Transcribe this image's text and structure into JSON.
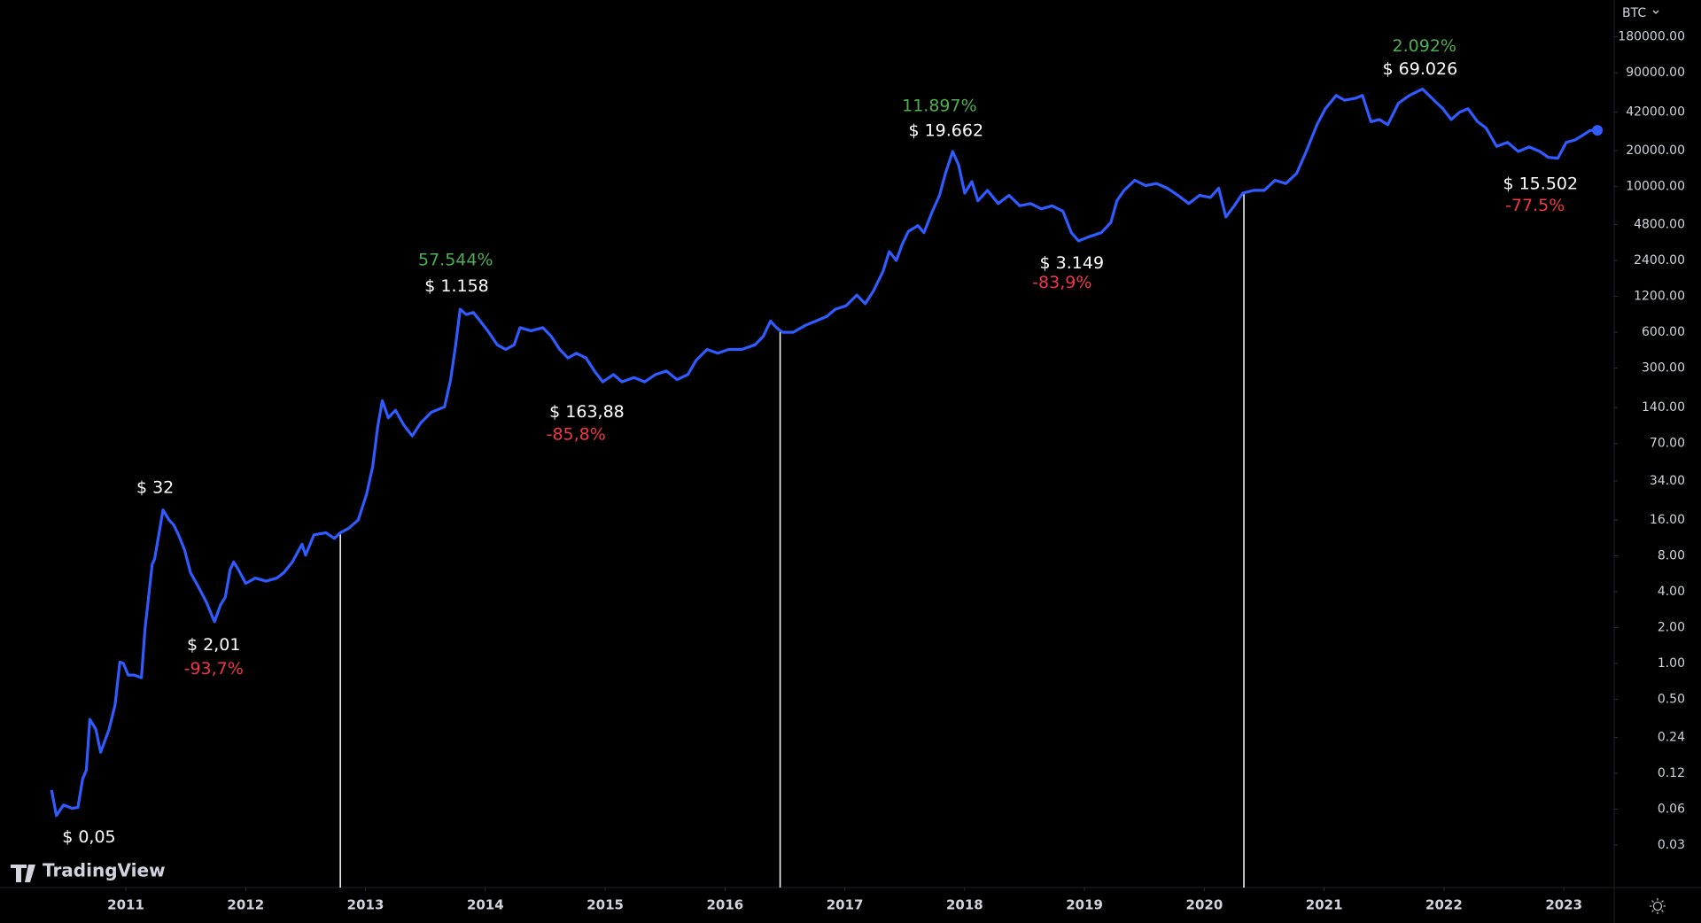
{
  "chart_data": {
    "type": "line",
    "log_scale": true,
    "grid": false,
    "xlim": [
      2009.95,
      2023.42
    ],
    "xticks": [
      2011,
      2012,
      2013,
      2014,
      2015,
      2016,
      2017,
      2018,
      2019,
      2020,
      2021,
      2022,
      2023
    ],
    "ylim": [
      0.0132,
      367000
    ],
    "yticks": [
      {
        "value": 180000,
        "label": "180000.00"
      },
      {
        "value": 90000,
        "label": "90000.00"
      },
      {
        "value": 42000,
        "label": "42000.00"
      },
      {
        "value": 20000,
        "label": "20000.00"
      },
      {
        "value": 10000,
        "label": "10000.00"
      },
      {
        "value": 4800,
        "label": "4800.00"
      },
      {
        "value": 2400,
        "label": "2400.00"
      },
      {
        "value": 1200,
        "label": "1200.00"
      },
      {
        "value": 600,
        "label": "600.00"
      },
      {
        "value": 300,
        "label": "300.00"
      },
      {
        "value": 140,
        "label": "140.00"
      },
      {
        "value": 70,
        "label": "70.00"
      },
      {
        "value": 34,
        "label": "34.00"
      },
      {
        "value": 16,
        "label": "16.00"
      },
      {
        "value": 8,
        "label": "8.00"
      },
      {
        "value": 4,
        "label": "4.00"
      },
      {
        "value": 2,
        "label": "2.00"
      },
      {
        "value": 1,
        "label": "1.00"
      },
      {
        "value": 0.5,
        "label": "0.50"
      },
      {
        "value": 0.24,
        "label": "0.24"
      },
      {
        "value": 0.12,
        "label": "0.12"
      },
      {
        "value": 0.06,
        "label": "0.06"
      },
      {
        "value": 0.03,
        "label": "0.03"
      }
    ],
    "x": [
      2010.38,
      2010.42,
      2010.48,
      2010.55,
      2010.6,
      2010.64,
      2010.67,
      2010.7,
      2010.75,
      2010.79,
      2010.86,
      2010.91,
      2010.95,
      2010.98,
      2011.02,
      2011.07,
      2011.13,
      2011.16,
      2011.22,
      2011.24,
      2011.31,
      2011.36,
      2011.4,
      2011.44,
      2011.49,
      2011.54,
      2011.6,
      2011.67,
      2011.74,
      2011.79,
      2011.83,
      2011.87,
      2011.9,
      2011.94,
      2012.0,
      2012.08,
      2012.17,
      2012.26,
      2012.32,
      2012.39,
      2012.47,
      2012.5,
      2012.57,
      2012.67,
      2012.74,
      2012.79,
      2012.86,
      2012.94,
      2013.01,
      2013.06,
      2013.1,
      2013.14,
      2013.19,
      2013.25,
      2013.32,
      2013.39,
      2013.46,
      2013.55,
      2013.66,
      2013.71,
      2013.75,
      2013.79,
      2013.84,
      2013.9,
      2013.95,
      2014.02,
      2014.1,
      2014.17,
      2014.24,
      2014.29,
      2014.38,
      2014.48,
      2014.55,
      2014.62,
      2014.69,
      2014.76,
      2014.84,
      2014.91,
      2014.98,
      2015.07,
      2015.14,
      2015.24,
      2015.33,
      2015.42,
      2015.51,
      2015.6,
      2015.69,
      2015.76,
      2015.85,
      2015.94,
      2016.03,
      2016.14,
      2016.25,
      2016.32,
      2016.38,
      2016.43,
      2016.48,
      2016.57,
      2016.67,
      2016.76,
      2016.85,
      2016.92,
      2017.01,
      2017.1,
      2017.17,
      2017.24,
      2017.32,
      2017.37,
      2017.43,
      2017.48,
      2017.53,
      2017.61,
      2017.66,
      2017.73,
      2017.79,
      2017.84,
      2017.9,
      2017.95,
      2018.0,
      2018.06,
      2018.11,
      2018.19,
      2018.28,
      2018.37,
      2018.46,
      2018.55,
      2018.64,
      2018.73,
      2018.82,
      2018.89,
      2018.95,
      2019.04,
      2019.14,
      2019.22,
      2019.27,
      2019.33,
      2019.42,
      2019.51,
      2019.6,
      2019.69,
      2019.78,
      2019.87,
      2019.96,
      2020.05,
      2020.12,
      2020.18,
      2020.25,
      2020.32,
      2020.41,
      2020.5,
      2020.59,
      2020.68,
      2020.77,
      2020.85,
      2020.94,
      2021.01,
      2021.1,
      2021.17,
      2021.26,
      2021.32,
      2021.39,
      2021.46,
      2021.53,
      2021.62,
      2021.71,
      2021.82,
      2021.9,
      2021.99,
      2022.06,
      2022.13,
      2022.2,
      2022.28,
      2022.35,
      2022.44,
      2022.53,
      2022.62,
      2022.71,
      2022.8,
      2022.87,
      2022.95,
      2023.02,
      2023.09,
      2023.16,
      2023.22,
      2023.28
    ],
    "series": [
      {
        "name": "BTC",
        "color": "#2f5bff",
        "values": [
          0.087,
          0.053,
          0.065,
          0.061,
          0.062,
          0.108,
          0.127,
          0.34,
          0.28,
          0.18,
          0.28,
          0.45,
          1.03,
          1.0,
          0.8,
          0.8,
          0.76,
          1.95,
          6.8,
          7.5,
          19.4,
          16,
          14.5,
          12,
          9.0,
          5.76,
          4.5,
          3.3,
          2.24,
          3.1,
          3.6,
          6.1,
          7.1,
          6.1,
          4.7,
          5.2,
          4.9,
          5.2,
          5.8,
          7.1,
          10.0,
          8.1,
          12,
          12.5,
          11.2,
          12.5,
          13.6,
          16,
          26.5,
          45,
          94,
          160,
          115,
          133,
          100,
          81,
          104,
          128,
          142,
          240,
          450,
          935,
          844,
          880,
          760,
          617,
          470,
          430,
          470,
          655,
          617,
          655,
          555,
          430,
          365,
          400,
          365,
          284,
          230,
          265,
          230,
          250,
          230,
          265,
          284,
          240,
          265,
          350,
          430,
          400,
          430,
          430,
          470,
          555,
          745,
          655,
          600,
          600,
          685,
          745,
          815,
          935,
          1000,
          1230,
          1040,
          1340,
          1960,
          2850,
          2400,
          3300,
          4200,
          4700,
          4100,
          6200,
          8450,
          12900,
          19700,
          15100,
          8800,
          11000,
          7600,
          9300,
          7200,
          8450,
          6900,
          7200,
          6500,
          6900,
          6200,
          4100,
          3500,
          3800,
          4100,
          5000,
          7600,
          9300,
          11300,
          10200,
          10600,
          9700,
          8450,
          7200,
          8450,
          8100,
          9700,
          5550,
          6900,
          8800,
          9300,
          9300,
          11300,
          10600,
          12900,
          19700,
          33000,
          45000,
          58000,
          53000,
          55000,
          58000,
          35000,
          36500,
          33000,
          50000,
          58000,
          65800,
          55000,
          45000,
          36500,
          42000,
          45000,
          35000,
          31000,
          21700,
          23500,
          19700,
          21500,
          19700,
          17600,
          17300,
          23500,
          24500,
          27000,
          29600,
          29600
        ]
      }
    ],
    "vlines": [
      2012.79,
      2016.46,
      2020.33
    ],
    "vline_color": "#ffffff",
    "annotations": [
      {
        "text": "$ 0,05",
        "color": "#ffffff"
      },
      {
        "text": "$ 32",
        "color": "#ffffff"
      },
      {
        "text": "$ 2,01",
        "color": "#ffffff"
      },
      {
        "text": "-93,7%",
        "color": "#f23645"
      },
      {
        "text": "57.544%",
        "color": "#4caf50"
      },
      {
        "text": "$ 1.158",
        "color": "#ffffff"
      },
      {
        "text": "$ 163,88",
        "color": "#ffffff"
      },
      {
        "text": "-85,8%",
        "color": "#f23645"
      },
      {
        "text": "11.897%",
        "color": "#4caf50"
      },
      {
        "text": "$ 19.662",
        "color": "#ffffff"
      },
      {
        "text": "$ 3.149",
        "color": "#ffffff"
      },
      {
        "text": "-83,9%",
        "color": "#f23645"
      },
      {
        "text": "2.092%",
        "color": "#4caf50"
      },
      {
        "text": "$ 69.026",
        "color": "#ffffff"
      },
      {
        "text": "$ 15.502",
        "color": "#ffffff"
      },
      {
        "text": "-77.5%",
        "color": "#f23645"
      }
    ],
    "brand": "TradingView"
  }
}
